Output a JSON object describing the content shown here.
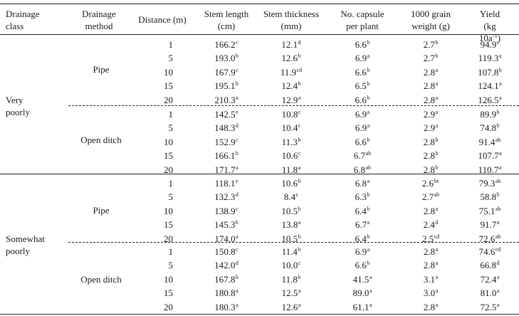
{
  "table": {
    "headers": [
      {
        "line1": "Drainage",
        "line2": "class"
      },
      {
        "line1": "Drainage",
        "line2": "method"
      },
      {
        "line1": "Distance (m)",
        "line2": ""
      },
      {
        "line1": "Stem length",
        "line2": "(cm)"
      },
      {
        "line1": "Stem thickness",
        "line2": "(mm)"
      },
      {
        "line1": "No. capsule",
        "line2": "per plant"
      },
      {
        "line1": "1000 grain",
        "line2": "weight (g)"
      },
      {
        "line1": "Yield",
        "line2": "(kg 10a",
        "line2_sup": "-1",
        "line2_end": ")"
      }
    ],
    "groups": [
      {
        "drainage_class": {
          "line1": "Very",
          "line2": "poorly"
        },
        "methods": [
          {
            "method": "Pipe",
            "rows": [
              {
                "distance": "1",
                "stem_length": "166.2",
                "sl_sig": "c",
                "stem_thickness": "12.1",
                "st_sig": "d",
                "capsules": "6.6",
                "cap_sig": "b",
                "grain_weight": "2.7",
                "gw_sig": "b",
                "yield": "94.9",
                "y_sig": "c"
              },
              {
                "distance": "5",
                "stem_length": "193.0",
                "sl_sig": "b",
                "stem_thickness": "12.6",
                "st_sig": "b",
                "capsules": "6.9",
                "cap_sig": "a",
                "grain_weight": "2.7",
                "gw_sig": "b",
                "yield": "119.3",
                "y_sig": "a"
              },
              {
                "distance": "10",
                "stem_length": "167.9",
                "sl_sig": "c",
                "stem_thickness": "11.9",
                "st_sig": "cd",
                "capsules": "6.6",
                "cap_sig": "b",
                "grain_weight": "2.8",
                "gw_sig": "a",
                "yield": "107.8",
                "y_sig": "b"
              },
              {
                "distance": "15",
                "stem_length": "195.1",
                "sl_sig": "b",
                "stem_thickness": "12.4",
                "st_sig": "b",
                "capsules": "6.5",
                "cap_sig": "b",
                "grain_weight": "2.8",
                "gw_sig": "a",
                "yield": "124.1",
                "y_sig": "a"
              },
              {
                "distance": "20",
                "stem_length": "210.3",
                "sl_sig": "a",
                "stem_thickness": "12.9",
                "st_sig": "a",
                "capsules": "6.6",
                "cap_sig": "b",
                "grain_weight": "2.8",
                "gw_sig": "a",
                "yield": "126.5",
                "y_sig": "a"
              }
            ]
          },
          {
            "method": "Open ditch",
            "rows": [
              {
                "distance": "1",
                "stem_length": "142.5",
                "sl_sig": "e",
                "stem_thickness": "10.8",
                "st_sig": "c",
                "capsules": "6.9",
                "cap_sig": "a",
                "grain_weight": "2.9",
                "gw_sig": "a",
                "yield": "89.9",
                "y_sig": "b"
              },
              {
                "distance": "5",
                "stem_length": "148.3",
                "sl_sig": "d",
                "stem_thickness": "10.4",
                "st_sig": "c",
                "capsules": "6.9",
                "cap_sig": "a",
                "grain_weight": "2.9",
                "gw_sig": "a",
                "yield": "74.8",
                "y_sig": "b"
              },
              {
                "distance": "10",
                "stem_length": "152.9",
                "sl_sig": "c",
                "stem_thickness": "11.3",
                "st_sig": "b",
                "capsules": "6.6",
                "cap_sig": "b",
                "grain_weight": "2.8",
                "gw_sig": "b",
                "yield": "91.4",
                "y_sig": "ab"
              },
              {
                "distance": "15",
                "stem_length": "166.1",
                "sl_sig": "b",
                "stem_thickness": "10.6",
                "st_sig": "c",
                "capsules": "6.7",
                "cap_sig": "ab",
                "grain_weight": "2.8",
                "gw_sig": "b",
                "yield": "107.7",
                "y_sig": "a"
              },
              {
                "distance": "20",
                "stem_length": "171.7",
                "sl_sig": "a",
                "stem_thickness": "11.8",
                "st_sig": "a",
                "capsules": "6.8",
                "cap_sig": "ab",
                "grain_weight": "2.8",
                "gw_sig": "b",
                "yield": "110.7",
                "y_sig": "a"
              }
            ]
          }
        ]
      },
      {
        "drainage_class": {
          "line1": "Somewhat",
          "line2": "poorly"
        },
        "methods": [
          {
            "method": "Pipe",
            "rows": [
              {
                "distance": "1",
                "stem_length": "118.1",
                "sl_sig": "e",
                "stem_thickness": "10.6",
                "st_sig": "b",
                "capsules": "6.8",
                "cap_sig": "a",
                "grain_weight": "2.6",
                "gw_sig": "bc",
                "yield": "79.3",
                "y_sig": "ab"
              },
              {
                "distance": "5",
                "stem_length": "132.3",
                "sl_sig": "d",
                "stem_thickness": "8.4",
                "st_sig": "c",
                "capsules": "6.3",
                "cap_sig": "b",
                "grain_weight": "2.7",
                "gw_sig": "ab",
                "yield": "58.8",
                "y_sig": "b"
              },
              {
                "distance": "10",
                "stem_length": "138.9",
                "sl_sig": "c",
                "stem_thickness": "10.5",
                "st_sig": "b",
                "capsules": "6.4",
                "cap_sig": "b",
                "grain_weight": "2.8",
                "gw_sig": "a",
                "yield": "75.1",
                "y_sig": "ab"
              },
              {
                "distance": "15",
                "stem_length": "145.3",
                "sl_sig": "b",
                "stem_thickness": "13.8",
                "st_sig": "a",
                "capsules": "6.7",
                "cap_sig": "a",
                "grain_weight": "2.4",
                "gw_sig": "d",
                "yield": "91.7",
                "y_sig": "a"
              },
              {
                "distance": "20",
                "stem_length": "174.0",
                "sl_sig": "a",
                "stem_thickness": "10.5",
                "st_sig": "b",
                "capsules": "6.4",
                "cap_sig": "b",
                "grain_weight": "2.5",
                "gw_sig": "cd",
                "yield": "72.6",
                "y_sig": "ab"
              }
            ]
          },
          {
            "method": "Open ditch",
            "rows": [
              {
                "distance": "1",
                "stem_length": "150.8",
                "sl_sig": "c",
                "stem_thickness": "11.4",
                "st_sig": "b",
                "capsules": "6.9",
                "cap_sig": "a",
                "grain_weight": "2.8",
                "gw_sig": "a",
                "yield": "74.6",
                "y_sig": "cd"
              },
              {
                "distance": "5",
                "stem_length": "142.0",
                "sl_sig": "d",
                "stem_thickness": "10.0",
                "st_sig": "c",
                "capsules": "6.6",
                "cap_sig": "b",
                "grain_weight": "2.8",
                "gw_sig": "a",
                "yield": "66.8",
                "y_sig": "d"
              },
              {
                "distance": "10",
                "stem_length": "167.8",
                "sl_sig": "b",
                "stem_thickness": "11.8",
                "st_sig": "b",
                "capsules": "41.5",
                "cap_sig": "a",
                "grain_weight": "3.1",
                "gw_sig": "a",
                "yield": "72.4",
                "y_sig": "a"
              },
              {
                "distance": "15",
                "stem_length": "180.8",
                "sl_sig": "a",
                "stem_thickness": "12.5",
                "st_sig": "a",
                "capsules": "89.0",
                "cap_sig": "a",
                "grain_weight": "3.0",
                "gw_sig": "a",
                "yield": "81.0",
                "y_sig": "a"
              },
              {
                "distance": "20",
                "stem_length": "180.3",
                "sl_sig": "a",
                "stem_thickness": "12.6",
                "st_sig": "a",
                "capsules": "61.1",
                "cap_sig": "a",
                "grain_weight": "2.8",
                "gw_sig": "a",
                "yield": "72.5",
                "y_sig": "a"
              }
            ]
          }
        ]
      }
    ]
  }
}
